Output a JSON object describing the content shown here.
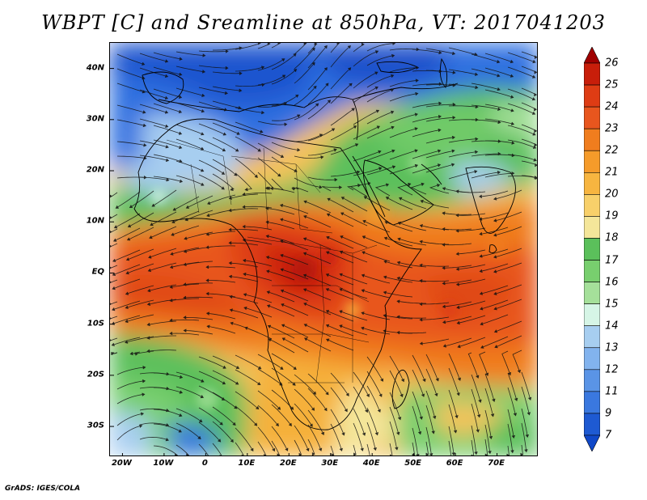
{
  "title": "WBPT [C] and Sreamline at 850hPa, VT: 2017041203",
  "footer": "GrADS: IGES/COLA",
  "map": {
    "lon_range": [
      -23,
      80
    ],
    "lat_range": [
      -36,
      45
    ],
    "lat_ticks": [
      {
        "value": 40,
        "label": "40N"
      },
      {
        "value": 30,
        "label": "30N"
      },
      {
        "value": 20,
        "label": "20N"
      },
      {
        "value": 10,
        "label": "10N"
      },
      {
        "value": 0,
        "label": "EQ"
      },
      {
        "value": -10,
        "label": "10S"
      },
      {
        "value": -20,
        "label": "20S"
      },
      {
        "value": -30,
        "label": "30S"
      }
    ],
    "lon_ticks": [
      {
        "value": -20,
        "label": "20W"
      },
      {
        "value": -10,
        "label": "10W"
      },
      {
        "value": 0,
        "label": "0"
      },
      {
        "value": 10,
        "label": "10E"
      },
      {
        "value": 20,
        "label": "20E"
      },
      {
        "value": 30,
        "label": "30E"
      },
      {
        "value": 40,
        "label": "40E"
      },
      {
        "value": 50,
        "label": "50E"
      },
      {
        "value": 60,
        "label": "60E"
      },
      {
        "value": 70,
        "label": "70E"
      }
    ]
  },
  "colorbar": {
    "levels": [
      "26",
      "25",
      "24",
      "23",
      "22",
      "21",
      "20",
      "19",
      "18",
      "17",
      "16",
      "15",
      "14",
      "13",
      "12",
      "11",
      "9",
      "7"
    ],
    "colors": [
      "#a00000",
      "#c81e0a",
      "#de3c14",
      "#e8561e",
      "#f07d1e",
      "#f59b2a",
      "#f7b540",
      "#f8d06a",
      "#f4e69a",
      "#5bc05b",
      "#78cf6e",
      "#a5e09a",
      "#d6f5e6",
      "#a7cef0",
      "#82b3ee",
      "#5a94e6",
      "#3a78df",
      "#1e5ad2",
      "#1048c8"
    ]
  }
}
